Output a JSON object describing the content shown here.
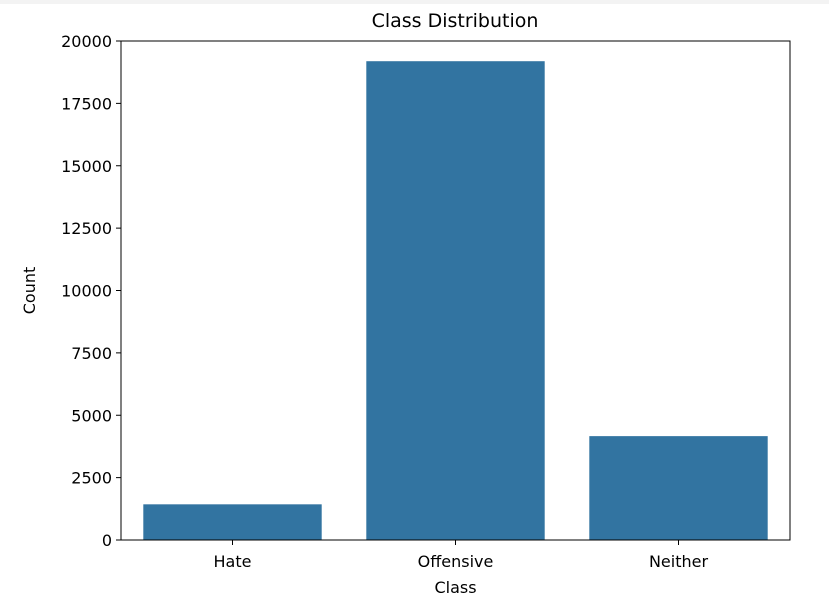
{
  "chart_data": {
    "type": "bar",
    "title": "Class Distribution",
    "xlabel": "Class",
    "ylabel": "Count",
    "categories": [
      "Hate",
      "Offensive",
      "Neither"
    ],
    "values": [
      1430,
      19190,
      4163
    ],
    "ylim": [
      0,
      20000
    ],
    "yticks": [
      0,
      2500,
      5000,
      7500,
      10000,
      12500,
      15000,
      17500,
      20000
    ],
    "grid": false,
    "bar_color": "#3274a1"
  }
}
